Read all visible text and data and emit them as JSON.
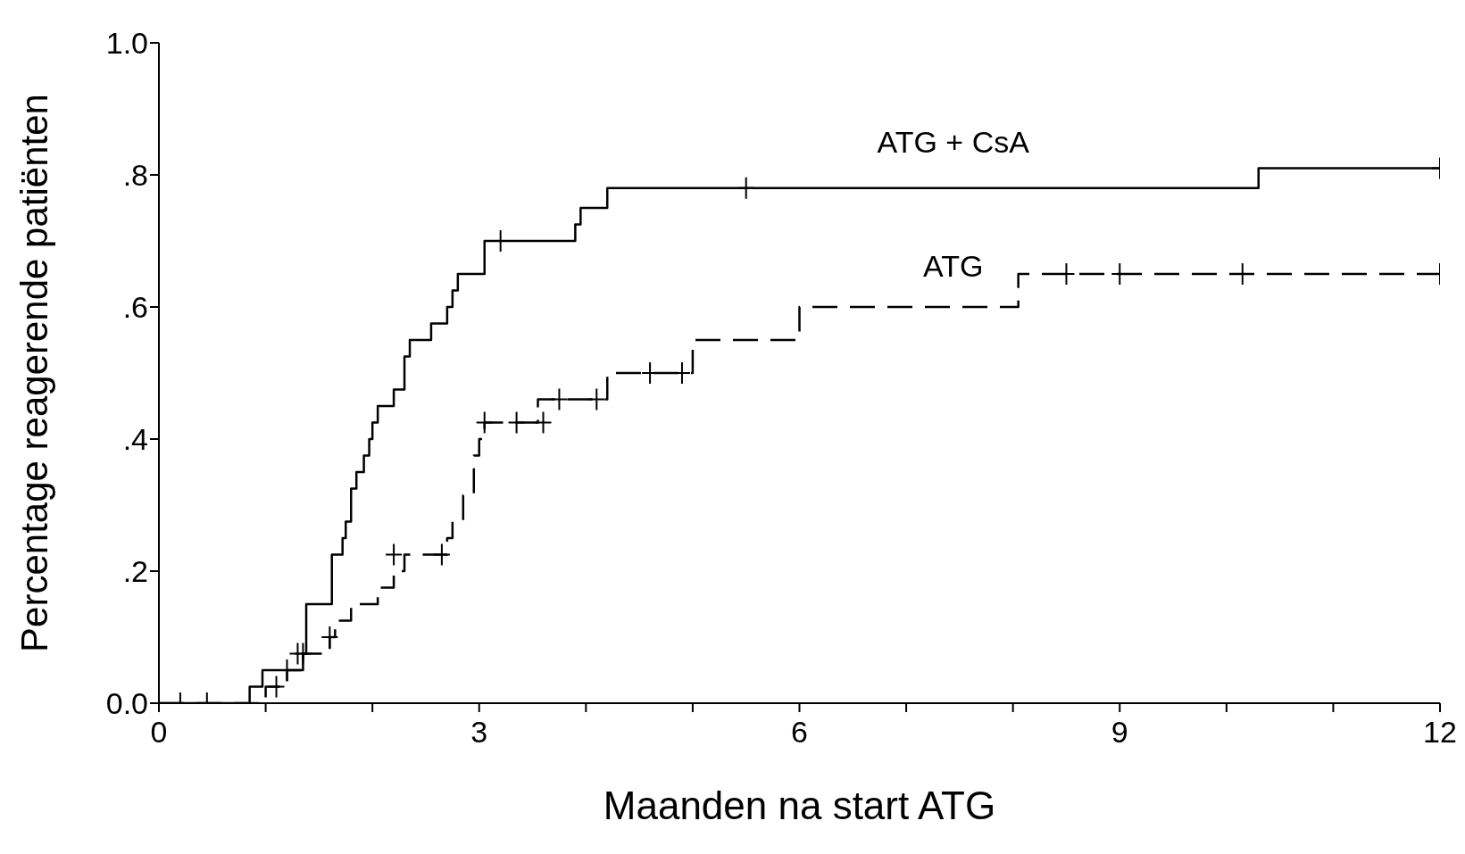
{
  "chart_data": {
    "type": "step",
    "xlabel": "Maanden na start ATG",
    "ylabel": "Percentage reagerende patiënten",
    "xlim": [
      0,
      12
    ],
    "ylim": [
      0,
      1
    ],
    "xticks": [
      0,
      {
        "value": 1,
        "label": null
      },
      {
        "value": 2,
        "label": null
      },
      3,
      {
        "value": 4,
        "label": null
      },
      {
        "value": 5,
        "label": null
      },
      6,
      {
        "value": 7,
        "label": null
      },
      {
        "value": 8,
        "label": null
      },
      9,
      {
        "value": 10,
        "label": null
      },
      {
        "value": 11,
        "label": null
      },
      12
    ],
    "yticks": [
      {
        "value": 0,
        "label": "0.0"
      },
      {
        "value": 0.2,
        "label": ".2"
      },
      {
        "value": 0.4,
        "label": ".4"
      },
      {
        "value": 0.6,
        "label": ".6"
      },
      {
        "value": 0.8,
        "label": ".8"
      },
      {
        "value": 1,
        "label": "1.0"
      }
    ],
    "grid": false,
    "series": [
      {
        "name": "ATG + CsA",
        "line_style": "solid",
        "color": "#000000",
        "x": [
          0,
          0.85,
          0.97,
          1.35,
          1.38,
          1.62,
          1.72,
          1.75,
          1.8,
          1.85,
          1.92,
          1.97,
          2.0,
          2.05,
          2.2,
          2.3,
          2.35,
          2.55,
          2.7,
          2.75,
          2.8,
          3.05,
          3.9,
          3.95,
          4.2,
          10.3,
          12
        ],
        "values": [
          0,
          0.025,
          0.05,
          0.075,
          0.15,
          0.225,
          0.25,
          0.275,
          0.325,
          0.35,
          0.375,
          0.4,
          0.425,
          0.45,
          0.475,
          0.525,
          0.55,
          0.575,
          0.6,
          0.625,
          0.65,
          0.7,
          0.725,
          0.75,
          0.78,
          0.81,
          0.81
        ]
      },
      {
        "name": "ATG",
        "line_style": "dashed",
        "color": "#000000",
        "x": [
          0,
          1.0,
          1.2,
          1.35,
          1.6,
          1.65,
          1.8,
          2.05,
          2.2,
          2.3,
          2.7,
          2.75,
          2.85,
          2.95,
          3.0,
          3.05,
          3.55,
          4.2,
          5.0,
          6.0,
          8.05,
          12
        ],
        "values": [
          0,
          0.025,
          0.05,
          0.075,
          0.1,
          0.125,
          0.15,
          0.175,
          0.2,
          0.225,
          0.25,
          0.275,
          0.315,
          0.375,
          0.4,
          0.425,
          0.46,
          0.5,
          0.55,
          0.6,
          0.65,
          0.65
        ]
      },
      {
        "type": "scatter",
        "marker": "cross",
        "color": "#000000",
        "x": [
          1.2,
          1.3,
          3.2,
          5.5,
          12
        ],
        "values": [
          0.05,
          0.075,
          0.7,
          0.78,
          0.81
        ]
      },
      {
        "type": "scatter",
        "marker": "cross",
        "color": "#000000",
        "x": [
          0.2,
          0.45,
          1.1,
          1.35,
          1.6,
          2.2,
          2.65,
          3.05,
          3.35,
          3.6,
          3.75,
          4.1,
          4.6,
          4.9,
          8.5,
          9.0,
          10.15,
          12
        ],
        "values": [
          0,
          0,
          0.025,
          0.075,
          0.1,
          0.225,
          0.225,
          0.425,
          0.425,
          0.425,
          0.46,
          0.46,
          0.5,
          0.5,
          0.65,
          0.65,
          0.65,
          0.65
        ]
      }
    ]
  }
}
